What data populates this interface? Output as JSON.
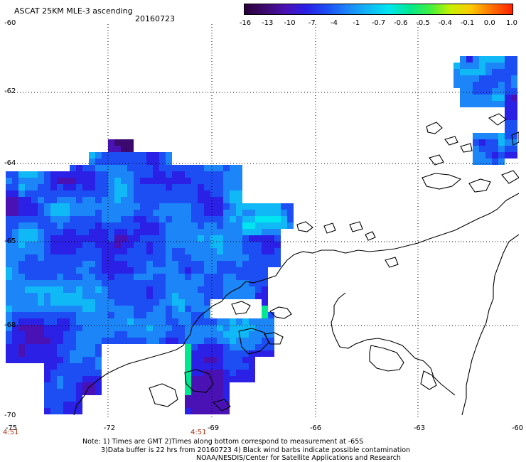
{
  "header": {
    "product_title": "ASCAT 25KM MLE-3 ascending",
    "date": "20160723"
  },
  "colorbar": {
    "labels": [
      "-16",
      "-13",
      "-10",
      "-7",
      "-4",
      "-1",
      "-0.7",
      "-0.6",
      "-0.5",
      "-0.4",
      "-0.1",
      "0.0",
      "1.0"
    ],
    "colors": [
      "#2a0038",
      "#3c0a6e",
      "#4a12b4",
      "#2a20e6",
      "#1c4ef4",
      "#1c86f8",
      "#10b8f6",
      "#00e6f0",
      "#00e890",
      "#40f040",
      "#c8f000",
      "#ffc800",
      "#ff7000",
      "#ff2000"
    ]
  },
  "map": {
    "y_labels": [
      "-60",
      "-62",
      "-64",
      "-65",
      "-68",
      "-70"
    ],
    "x_labels": [
      "-75",
      "-72",
      "-69",
      "-66",
      "-63",
      "-60"
    ],
    "time_labels": [
      "4:51",
      "4:51"
    ],
    "colors": {
      "land_outline": "#000000",
      "gridline": "#000000"
    }
  },
  "footer": {
    "note_line1": "Note: 1) Times are GMT 2)Times along bottom correspond to measurement at -65S",
    "note_line2": "3)Data buffer is 22 hrs from 20160723 4) Black wind barbs indicate possible contamination",
    "credit": "NOAA/NESDIS/Center for Satellite Applications and Research"
  }
}
